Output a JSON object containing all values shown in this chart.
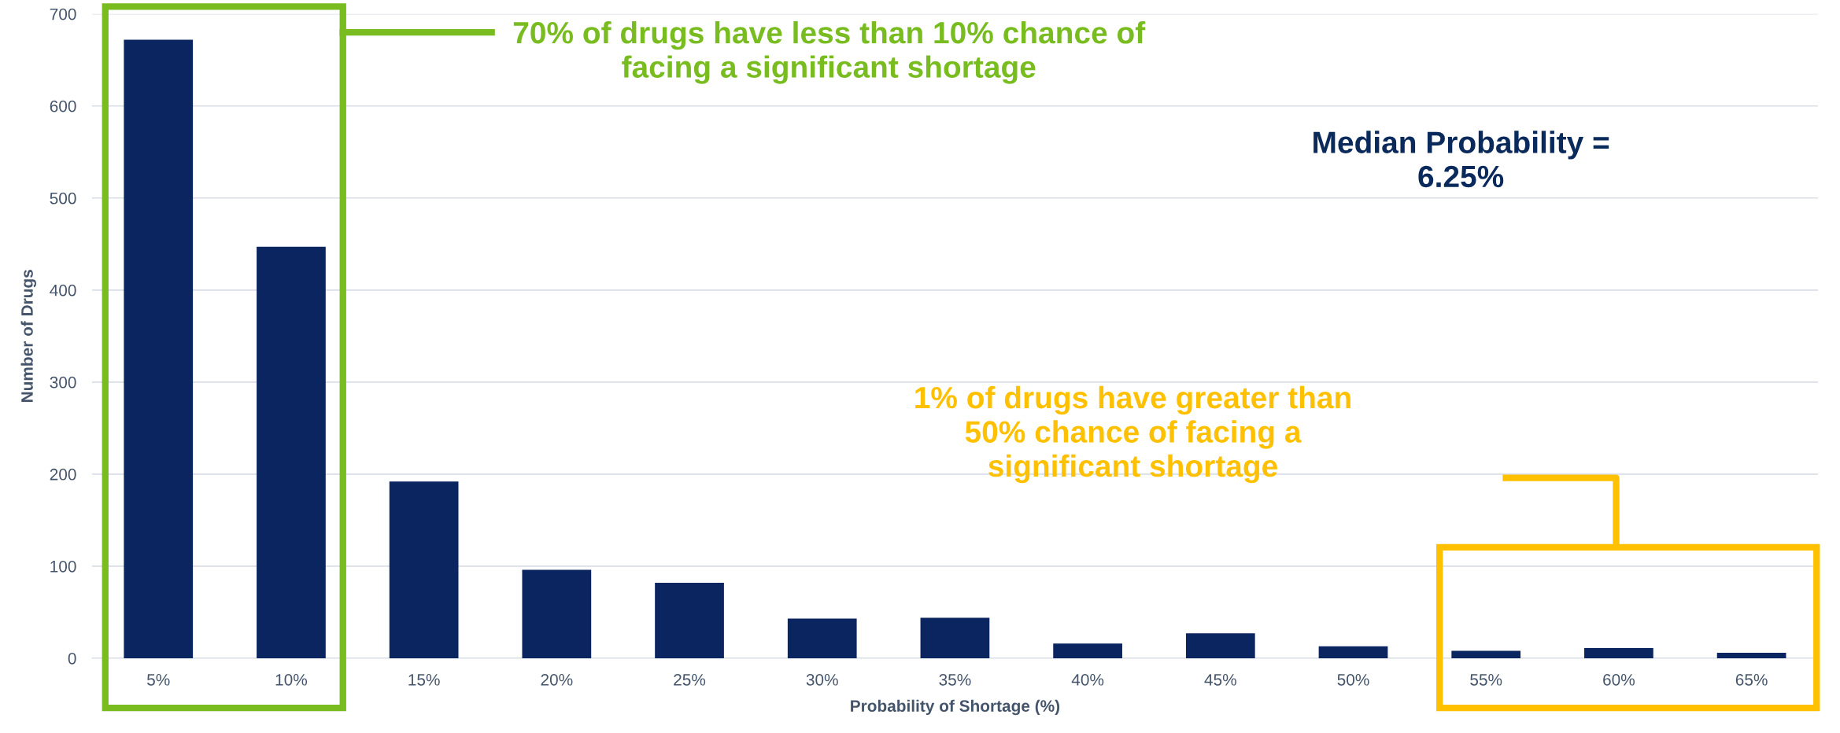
{
  "chart_data": {
    "type": "bar",
    "xlabel": "Probability of Shortage (%)",
    "ylabel": "Number of Drugs",
    "categories": [
      "5%",
      "10%",
      "15%",
      "20%",
      "25%",
      "30%",
      "35%",
      "40%",
      "45%",
      "50%",
      "55%",
      "60%",
      "65%"
    ],
    "values": [
      672,
      447,
      192,
      96,
      82,
      43,
      44,
      16,
      27,
      13,
      8,
      11,
      6
    ],
    "color": "#0b2560",
    "ylim": [
      0,
      700
    ],
    "yticks": [
      0,
      100,
      200,
      300,
      400,
      500,
      600,
      700
    ],
    "grid": "y",
    "annotations": [
      "70% of drugs have less than 10% chance of\nfacing a significant shortage",
      "Median Probability =\n6.25%",
      "1% of drugs have greater than\n50% chance of facing a\nsignificant shortage"
    ]
  }
}
